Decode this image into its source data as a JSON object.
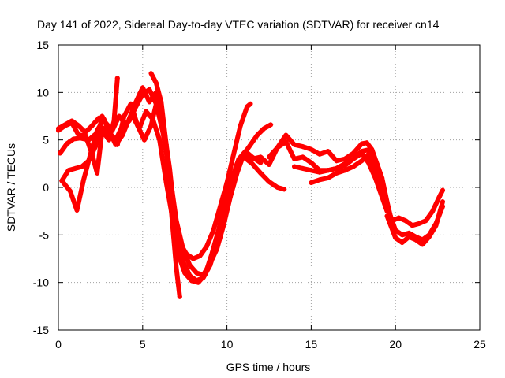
{
  "chart_data": {
    "type": "scatter",
    "title": "Day 141 of 2022, Sidereal Day-to-day VTEC variation (SDTVAR) for receiver cn14",
    "xlabel": "GPS time / hours",
    "ylabel": "SDTVAR / TECUs",
    "xlim": [
      0,
      25
    ],
    "ylim": [
      -15,
      15
    ],
    "x_ticks": [
      0,
      5,
      10,
      15,
      20,
      25
    ],
    "y_ticks": [
      -15,
      -10,
      -5,
      0,
      5,
      10,
      15
    ],
    "grid": true,
    "marker": "+",
    "color": "#ff0000",
    "series": [
      {
        "name": "trace-1",
        "x": [
          0.0,
          0.4,
          0.8,
          1.2,
          1.6,
          2.0,
          2.4,
          2.8,
          3.2,
          3.6,
          4.0,
          4.4,
          4.8,
          5.2,
          5.6,
          6.0,
          6.4,
          6.8,
          7.2,
          7.6,
          8.0,
          8.4,
          8.8,
          9.2,
          9.6,
          10.0,
          10.4,
          10.8,
          11.2,
          11.4
        ],
        "y": [
          6.2,
          6.6,
          7.0,
          6.5,
          5.8,
          6.5,
          7.3,
          6.8,
          6.0,
          7.5,
          6.6,
          7.5,
          6.2,
          8.0,
          7.2,
          5.0,
          0.5,
          -3.5,
          -5.8,
          -7.0,
          -7.5,
          -7.2,
          -6.2,
          -4.5,
          -2.0,
          0.5,
          3.5,
          6.5,
          8.5,
          8.8
        ]
      },
      {
        "name": "trace-2",
        "x": [
          0.1,
          0.5,
          0.9,
          1.3,
          1.8,
          2.2,
          2.6,
          3.0,
          3.4,
          3.8,
          4.2,
          4.6,
          5.0,
          5.4,
          5.8,
          6.2,
          6.6,
          7.0,
          7.4,
          7.8,
          8.2,
          8.6,
          9.0,
          9.4,
          9.8,
          10.2,
          10.6,
          11.0,
          11.4,
          11.8,
          12.2,
          12.6
        ],
        "y": [
          3.6,
          4.6,
          5.1,
          5.2,
          5.0,
          5.6,
          6.3,
          5.8,
          5.0,
          6.5,
          7.0,
          8.5,
          9.8,
          10.3,
          8.8,
          5.8,
          1.5,
          -3.5,
          -6.5,
          -8.2,
          -9.0,
          -9.2,
          -8.0,
          -6.5,
          -4.0,
          -1.0,
          1.5,
          3.5,
          4.5,
          5.5,
          6.2,
          6.6
        ]
      },
      {
        "name": "trace-3",
        "x": [
          0.2,
          0.6,
          1.0,
          1.4,
          1.8,
          2.2,
          2.6,
          3.0,
          3.4,
          3.8,
          4.2,
          4.6,
          5.0,
          5.4,
          5.8,
          6.2,
          6.6,
          7.0,
          7.4,
          7.8,
          8.2,
          8.6,
          9.0,
          9.4,
          9.8,
          10.2,
          10.6,
          11.0,
          11.5,
          12.0,
          12.5,
          13.0,
          13.4
        ],
        "y": [
          0.7,
          1.8,
          2.0,
          2.2,
          2.8,
          4.3,
          7.5,
          6.0,
          4.5,
          5.5,
          7.2,
          9.0,
          10.5,
          9.0,
          10.0,
          7.0,
          2.0,
          -4.5,
          -7.8,
          -9.3,
          -9.8,
          -9.5,
          -8.2,
          -6.0,
          -3.0,
          0.0,
          2.5,
          3.2,
          2.5,
          1.5,
          0.6,
          0.0,
          -0.2
        ]
      },
      {
        "name": "trace-4",
        "x": [
          0.3,
          0.7,
          1.1,
          1.5,
          1.9,
          2.3,
          2.7,
          3.1,
          3.5,
          3.9,
          4.3,
          4.7,
          5.1,
          5.5,
          5.9,
          6.3,
          6.7,
          7.1,
          7.5,
          7.9,
          8.3,
          8.7,
          9.1,
          9.5,
          9.9,
          10.3,
          10.7,
          11.1,
          11.5,
          12.0
        ],
        "y": [
          0.5,
          -0.4,
          -2.4,
          0.8,
          3.5,
          6.0,
          7.2,
          5.5,
          4.5,
          7.5,
          8.8,
          6.5,
          5.0,
          6.5,
          9.5,
          5.5,
          -1.0,
          -7.0,
          -9.0,
          -9.8,
          -10.0,
          -9.2,
          -7.0,
          -4.5,
          -1.5,
          1.0,
          3.0,
          3.8,
          3.2,
          2.6
        ]
      },
      {
        "name": "trace-5",
        "x": [
          0.0,
          0.4,
          0.8,
          1.2,
          1.6,
          2.0,
          2.3,
          2.6,
          3.0,
          3.3,
          3.5
        ],
        "y": [
          6.0,
          6.5,
          6.8,
          5.5,
          5.5,
          3.5,
          1.5,
          6.0,
          5.0,
          7.0,
          11.5
        ]
      },
      {
        "name": "trace-6",
        "x": [
          5.5,
          5.8,
          6.1,
          6.4,
          6.7,
          7.0,
          7.2
        ],
        "y": [
          12.0,
          11.0,
          9.0,
          4.5,
          -2.5,
          -8.5,
          -11.5
        ]
      },
      {
        "name": "trace-7",
        "x": [
          11.0,
          11.5,
          12.0,
          12.5,
          13.0,
          13.5,
          14.0,
          14.5,
          15.0,
          15.5,
          16.0,
          16.5,
          17.0,
          17.5,
          18.0,
          18.3,
          18.6,
          18.9,
          19.2,
          19.5,
          19.7
        ],
        "y": [
          3.6,
          3.0,
          3.2,
          2.4,
          4.2,
          5.5,
          4.5,
          4.3,
          4.0,
          3.5,
          3.8,
          2.8,
          3.0,
          3.6,
          4.6,
          4.7,
          4.0,
          2.5,
          1.0,
          -1.5,
          -3.0
        ]
      },
      {
        "name": "trace-8",
        "x": [
          12.5,
          13.0,
          13.5,
          14.0,
          14.5,
          15.0,
          15.5,
          16.0,
          16.5,
          17.0,
          17.5,
          18.0,
          18.4,
          18.8,
          19.2,
          19.5
        ],
        "y": [
          3.2,
          4.2,
          4.8,
          3.0,
          3.2,
          2.6,
          1.8,
          1.8,
          2.0,
          2.3,
          3.0,
          3.6,
          2.6,
          1.0,
          -1.0,
          -2.5
        ]
      },
      {
        "name": "trace-9",
        "x": [
          14.0,
          14.5,
          15.0,
          15.5,
          16.0,
          16.5,
          17.0,
          17.5,
          18.0,
          18.5,
          19.0,
          19.4,
          19.8,
          20.2,
          20.6,
          21.0,
          21.4,
          21.8,
          22.2,
          22.6,
          22.8
        ],
        "y": [
          2.2,
          2.0,
          1.8,
          1.6,
          1.8,
          2.0,
          2.5,
          3.0,
          3.8,
          4.0,
          2.0,
          -1.5,
          -3.5,
          -3.2,
          -3.5,
          -4.0,
          -3.8,
          -3.5,
          -2.5,
          -1.0,
          -0.3
        ]
      },
      {
        "name": "trace-10",
        "x": [
          15.0,
          15.5,
          16.0,
          16.5,
          17.0,
          17.5,
          18.0,
          18.4,
          18.8,
          19.2,
          19.6,
          20.0,
          20.4,
          20.8,
          21.2,
          21.6,
          22.0,
          22.4,
          22.8
        ],
        "y": [
          0.5,
          0.8,
          1.0,
          1.5,
          1.8,
          2.2,
          2.8,
          3.5,
          2.0,
          -0.5,
          -2.5,
          -4.5,
          -5.0,
          -4.8,
          -5.2,
          -5.5,
          -5.0,
          -3.8,
          -2.0
        ]
      },
      {
        "name": "trace-11",
        "x": [
          19.5,
          20.0,
          20.4,
          20.8,
          21.2,
          21.6,
          22.0,
          22.4,
          22.8
        ],
        "y": [
          -3.0,
          -5.3,
          -5.8,
          -5.2,
          -5.5,
          -6.0,
          -5.2,
          -4.0,
          -1.5
        ]
      }
    ]
  }
}
